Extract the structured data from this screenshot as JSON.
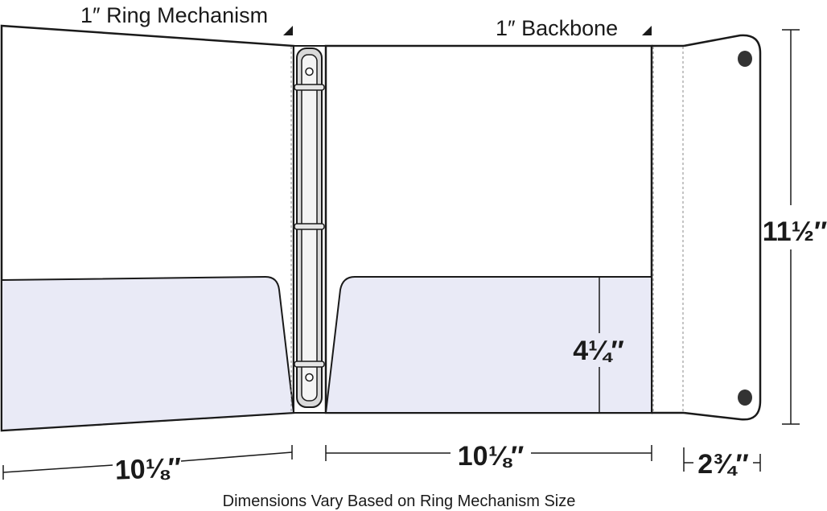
{
  "labels": {
    "ring_mechanism": "1″ Ring Mechanism",
    "backbone": "1″ Backbone",
    "height": "11½″",
    "pocket_height": "4¼″",
    "left_panel_width": "10⅛″",
    "right_panel_width": "10⅛″",
    "flap_width": "2¾″",
    "caption": "Dimensions Vary Based on Ring Mechanism Size"
  },
  "colors": {
    "outline": "#1a1a1a",
    "pocket_fill": "#e9eaf6",
    "ring_fill": "#d9d9d9",
    "ring_highlight": "#f4f4f4",
    "rivet": "#333333",
    "dashed": "#888888"
  }
}
